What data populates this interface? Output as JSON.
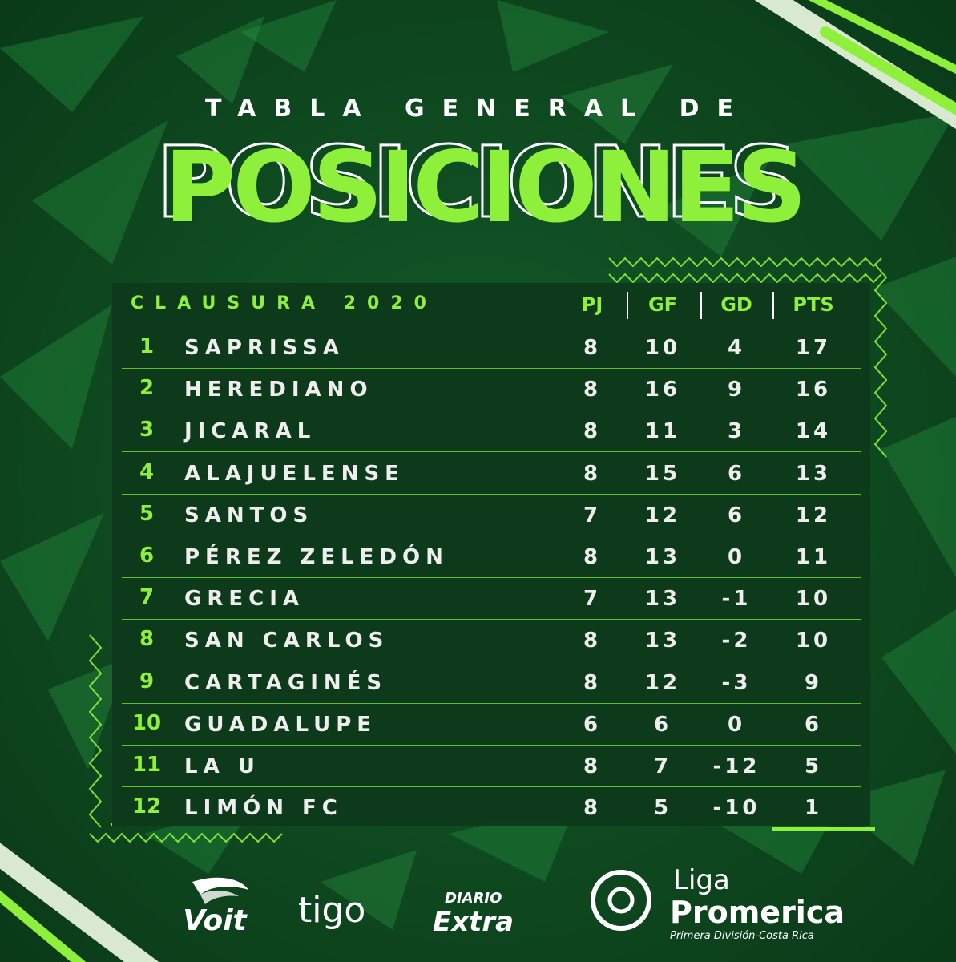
{
  "header": {
    "subtitle": "TABLA GENERAL DE",
    "title": "POSICIONES"
  },
  "table": {
    "season": "CLAUSURA 2020",
    "columns": [
      "PJ",
      "GF",
      "GD",
      "PTS"
    ],
    "rows": [
      {
        "rank": "1",
        "team": "SAPRISSA",
        "pj": "8",
        "gf": "10",
        "gd": "4",
        "pts": "17"
      },
      {
        "rank": "2",
        "team": "HEREDIANO",
        "pj": "8",
        "gf": "16",
        "gd": "9",
        "pts": "16"
      },
      {
        "rank": "3",
        "team": "JICARAL",
        "pj": "8",
        "gf": "11",
        "gd": "3",
        "pts": "14"
      },
      {
        "rank": "4",
        "team": "ALAJUELENSE",
        "pj": "8",
        "gf": "15",
        "gd": "6",
        "pts": "13"
      },
      {
        "rank": "5",
        "team": "SANTOS",
        "pj": "7",
        "gf": "12",
        "gd": "6",
        "pts": "12"
      },
      {
        "rank": "6",
        "team": "PÉREZ ZELEDÓN",
        "pj": "8",
        "gf": "13",
        "gd": "0",
        "pts": "11"
      },
      {
        "rank": "7",
        "team": "GRECIA",
        "pj": "7",
        "gf": "13",
        "gd": "-1",
        "pts": "10"
      },
      {
        "rank": "8",
        "team": "SAN CARLOS",
        "pj": "8",
        "gf": "13",
        "gd": "-2",
        "pts": "10"
      },
      {
        "rank": "9",
        "team": "CARTAGINÉS",
        "pj": "8",
        "gf": "12",
        "gd": "-3",
        "pts": "9"
      },
      {
        "rank": "10",
        "team": "GUADALUPE",
        "pj": "6",
        "gf": "6",
        "gd": "0",
        "pts": "6"
      },
      {
        "rank": "11",
        "team": "LA U",
        "pj": "8",
        "gf": "7",
        "gd": "-12",
        "pts": "5"
      },
      {
        "rank": "12",
        "team": "LIMÓN FC",
        "pj": "8",
        "gf": "5",
        "gd": "-10",
        "pts": "1"
      }
    ]
  },
  "sponsors": {
    "voit": "Voit",
    "tigo": "tigo",
    "diario_top": "DIARIO",
    "diario_bottom": "Extra",
    "liga_top": "Liga",
    "liga_main": "Promerica",
    "liga_sub": "Primera División-Costa Rica"
  },
  "colors": {
    "background": "#0f4a22",
    "panel": "#0e3a1c",
    "accent": "#8ef03a",
    "text": "#eeeeee"
  }
}
